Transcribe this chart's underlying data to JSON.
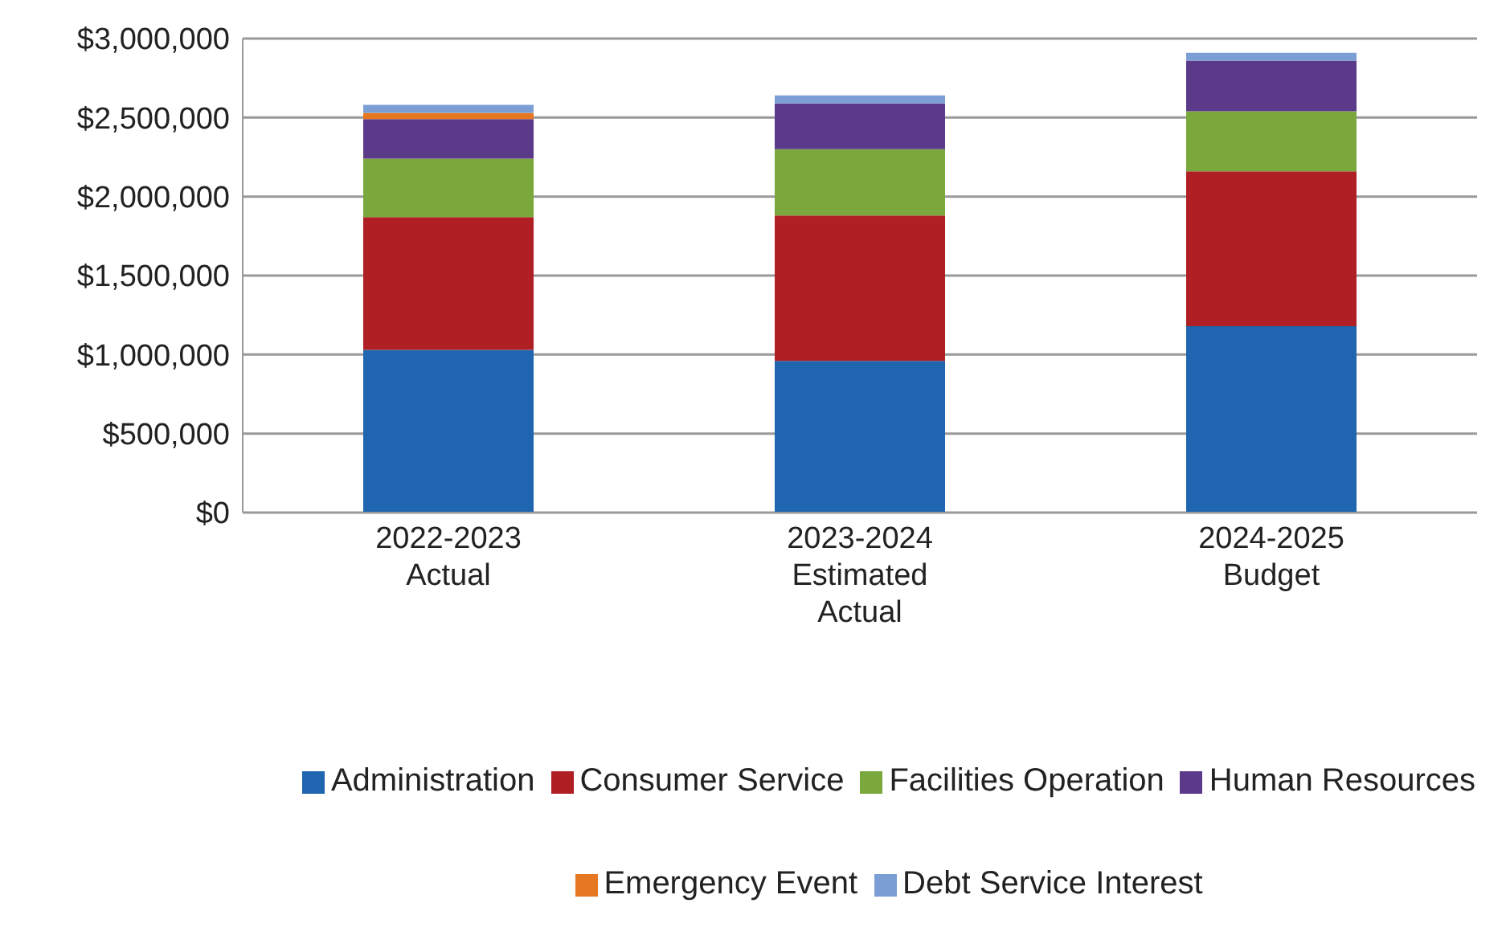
{
  "chart_data": {
    "type": "bar",
    "stacked": true,
    "categories": [
      "2022-2023\nActual",
      "2023-2024\nEstimated\nActual",
      "2024-2025\nBudget"
    ],
    "series": [
      {
        "name": "Administration",
        "color": "#1f65b0",
        "values": [
          1030000,
          960000,
          1180000
        ]
      },
      {
        "name": "Consumer Service",
        "color": "#b01f24",
        "values": [
          840000,
          920000,
          980000
        ]
      },
      {
        "name": "Facilities Operation",
        "color": "#7aa83c",
        "values": [
          370000,
          420000,
          380000
        ]
      },
      {
        "name": "Human Resources",
        "color": "#5c3a8a",
        "values": [
          250000,
          290000,
          320000
        ]
      },
      {
        "name": "Emergency Event",
        "color": "#e87722",
        "values": [
          40000,
          0,
          0
        ]
      },
      {
        "name": "Debt Service Interest",
        "color": "#7b9fd4",
        "values": [
          50000,
          50000,
          50000
        ]
      }
    ],
    "ylim": [
      0,
      3000000
    ],
    "yticks": [
      {
        "value": 0,
        "label": "$0"
      },
      {
        "value": 500000,
        "label": "$500,000"
      },
      {
        "value": 1000000,
        "label": "$1,000,000"
      },
      {
        "value": 1500000,
        "label": "$1,500,000"
      },
      {
        "value": 2000000,
        "label": "$2,000,000"
      },
      {
        "value": 2500000,
        "label": "$2,500,000"
      },
      {
        "value": 3000000,
        "label": "$3,000,000"
      }
    ],
    "grid": "y",
    "legend": "bottom"
  }
}
